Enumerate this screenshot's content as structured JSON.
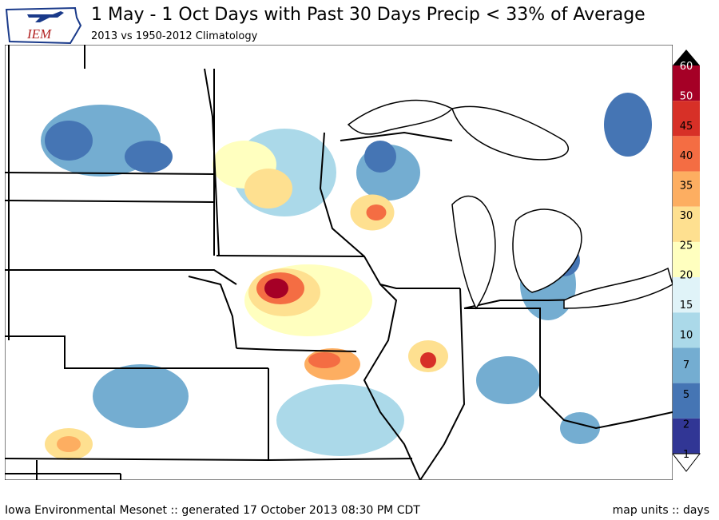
{
  "header": {
    "logo_text": "IEM",
    "title": "1 May - 1 Oct Days with Past 30 Days Precip < 33% of Average",
    "subtitle": "2013 vs 1950-2012 Climatology"
  },
  "footer": {
    "left": "Iowa Environmental Mesonet :: generated 17 October 2013 08:30 PM CDT",
    "right": "map units :: days"
  },
  "legend": {
    "ticks": [
      "60",
      "50",
      "45",
      "40",
      "35",
      "30",
      "25",
      "20",
      "15",
      "10",
      "7",
      "5",
      "2",
      "1"
    ],
    "colors": [
      "#a50026",
      "#d73027",
      "#f46d43",
      "#fdae61",
      "#fee090",
      "#ffffbf",
      "#e0f3f8",
      "#abd9e9",
      "#74add1",
      "#4575b4",
      "#313695"
    ]
  },
  "map": {
    "hotspots": [
      {
        "region": "north-central Iowa",
        "level": "50-60 days"
      },
      {
        "region": "southern Iowa / northern Missouri",
        "level": "40-50 days"
      },
      {
        "region": "central Wisconsin",
        "level": "40-50 days"
      },
      {
        "region": "central Illinois",
        "level": "40-50 days"
      }
    ]
  }
}
